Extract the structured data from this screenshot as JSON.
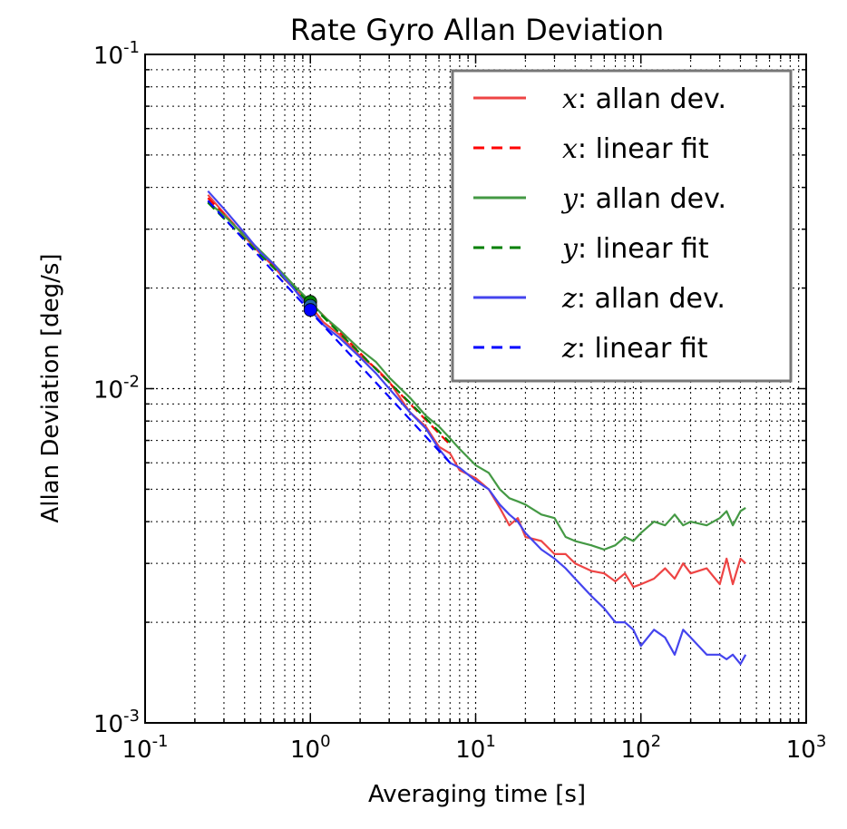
{
  "chart_data": {
    "type": "line",
    "title": "Rate Gyro Allan Deviation",
    "xlabel": "Averaging time [s]",
    "ylabel": "Allan Deviation [deg/s]",
    "xscale": "log",
    "yscale": "log",
    "xlim": [
      0.1,
      1000
    ],
    "ylim": [
      0.001,
      0.1
    ],
    "grid": true,
    "legend_position": "top-right",
    "x_tick_labels": [
      {
        "base": "10",
        "exp": "-1",
        "value": 0.1
      },
      {
        "base": "10",
        "exp": "0",
        "value": 1
      },
      {
        "base": "10",
        "exp": "1",
        "value": 10
      },
      {
        "base": "10",
        "exp": "2",
        "value": 100
      },
      {
        "base": "10",
        "exp": "3",
        "value": 1000
      }
    ],
    "y_tick_labels": [
      {
        "base": "10",
        "exp": "-3",
        "value": 0.001
      },
      {
        "base": "10",
        "exp": "-2",
        "value": 0.01
      },
      {
        "base": "10",
        "exp": "-1",
        "value": 0.1
      }
    ],
    "legend": [
      {
        "var": "x",
        "text": ": allan dev.",
        "color": "#ee4444",
        "dash": "solid"
      },
      {
        "var": "x",
        "text": ": linear fit",
        "color": "#ff0000",
        "dash": "dashed"
      },
      {
        "var": "y",
        "text": ": allan dev.",
        "color": "#449944",
        "dash": "solid"
      },
      {
        "var": "y",
        "text": ": linear fit",
        "color": "#008000",
        "dash": "dashed"
      },
      {
        "var": "z",
        "text": ": allan dev.",
        "color": "#4444ee",
        "dash": "solid"
      },
      {
        "var": "z",
        "text": ": linear fit",
        "color": "#0000ff",
        "dash": "dashed"
      }
    ],
    "markers": [
      {
        "name": "y",
        "x": 1.0,
        "y": 0.0182,
        "color": "#008000"
      },
      {
        "name": "x",
        "x": 1.0,
        "y": 0.0177,
        "color": "#2266aa"
      },
      {
        "name": "z",
        "x": 1.0,
        "y": 0.0172,
        "color": "#0000ff"
      }
    ],
    "series": [
      {
        "name": "x: allan dev.",
        "color": "#ee4444",
        "dash": "solid",
        "x": [
          0.24,
          0.3,
          0.4,
          0.5,
          0.6,
          0.7,
          0.8,
          1.0,
          1.2,
          1.5,
          2,
          2.5,
          3,
          4,
          5,
          6,
          7,
          8,
          10,
          12,
          14,
          16,
          18,
          20,
          25,
          30,
          35,
          40,
          50,
          60,
          70,
          80,
          90,
          100,
          120,
          140,
          160,
          180,
          200,
          250,
          300,
          330,
          360,
          400,
          430
        ],
        "y": [
          0.038,
          0.0335,
          0.0285,
          0.0253,
          0.0232,
          0.0212,
          0.0199,
          0.0177,
          0.0158,
          0.0145,
          0.0125,
          0.0115,
          0.0105,
          0.0085,
          0.0077,
          0.0067,
          0.0064,
          0.0057,
          0.0054,
          0.005,
          0.0044,
          0.0039,
          0.0041,
          0.0036,
          0.0035,
          0.0032,
          0.0032,
          0.003,
          0.00285,
          0.0028,
          0.00265,
          0.0028,
          0.00255,
          0.0026,
          0.0027,
          0.0029,
          0.0027,
          0.003,
          0.0028,
          0.0029,
          0.0026,
          0.0031,
          0.0026,
          0.0031,
          0.003
        ]
      },
      {
        "name": "x: linear fit",
        "color": "#ff0000",
        "dash": "dashed",
        "x": [
          0.24,
          7.0
        ],
        "y": [
          0.0372,
          0.0068
        ]
      },
      {
        "name": "y: allan dev.",
        "color": "#449944",
        "dash": "solid",
        "x": [
          0.24,
          0.3,
          0.4,
          0.5,
          0.6,
          0.7,
          0.8,
          1.0,
          1.2,
          1.5,
          2,
          2.5,
          3,
          4,
          5,
          6,
          7,
          8,
          10,
          12,
          14,
          16,
          18,
          20,
          25,
          30,
          35,
          40,
          50,
          60,
          70,
          80,
          90,
          100,
          120,
          140,
          160,
          180,
          200,
          250,
          300,
          330,
          360,
          400,
          430
        ],
        "y": [
          0.0362,
          0.033,
          0.0287,
          0.0258,
          0.0236,
          0.0218,
          0.0203,
          0.0182,
          0.0165,
          0.015,
          0.0131,
          0.012,
          0.0108,
          0.0094,
          0.0083,
          0.0077,
          0.0071,
          0.0066,
          0.0059,
          0.0056,
          0.005,
          0.0047,
          0.0046,
          0.0045,
          0.0042,
          0.0041,
          0.0036,
          0.0035,
          0.0034,
          0.0033,
          0.0034,
          0.0036,
          0.0035,
          0.0037,
          0.004,
          0.0039,
          0.0042,
          0.0039,
          0.004,
          0.0039,
          0.0041,
          0.0043,
          0.0039,
          0.0043,
          0.0044
        ]
      },
      {
        "name": "y: linear fit",
        "color": "#008000",
        "dash": "dashed",
        "x": [
          0.24,
          7.0
        ],
        "y": [
          0.036,
          0.0069
        ]
      },
      {
        "name": "z: allan dev.",
        "color": "#4444ee",
        "dash": "solid",
        "x": [
          0.24,
          0.3,
          0.4,
          0.5,
          0.6,
          0.7,
          0.8,
          1.0,
          1.2,
          1.5,
          2,
          2.5,
          3,
          4,
          5,
          6,
          7,
          8,
          10,
          12,
          14,
          16,
          18,
          20,
          25,
          30,
          35,
          40,
          50,
          60,
          70,
          80,
          90,
          100,
          120,
          140,
          160,
          180,
          200,
          250,
          300,
          330,
          360,
          400,
          430
        ],
        "y": [
          0.039,
          0.0345,
          0.0292,
          0.0255,
          0.0236,
          0.0214,
          0.0198,
          0.0172,
          0.0155,
          0.0142,
          0.0124,
          0.0111,
          0.01,
          0.0085,
          0.0076,
          0.0066,
          0.006,
          0.0058,
          0.0053,
          0.005,
          0.0045,
          0.0042,
          0.004,
          0.0037,
          0.0033,
          0.0031,
          0.0029,
          0.0027,
          0.0024,
          0.0022,
          0.002,
          0.002,
          0.0019,
          0.0017,
          0.0019,
          0.0018,
          0.0016,
          0.0019,
          0.0018,
          0.0016,
          0.0016,
          0.00155,
          0.0016,
          0.0015,
          0.0016
        ]
      },
      {
        "name": "z: linear fit",
        "color": "#0000ff",
        "dash": "dashed",
        "x": [
          0.24,
          7.0
        ],
        "y": [
          0.0365,
          0.006
        ]
      }
    ]
  }
}
